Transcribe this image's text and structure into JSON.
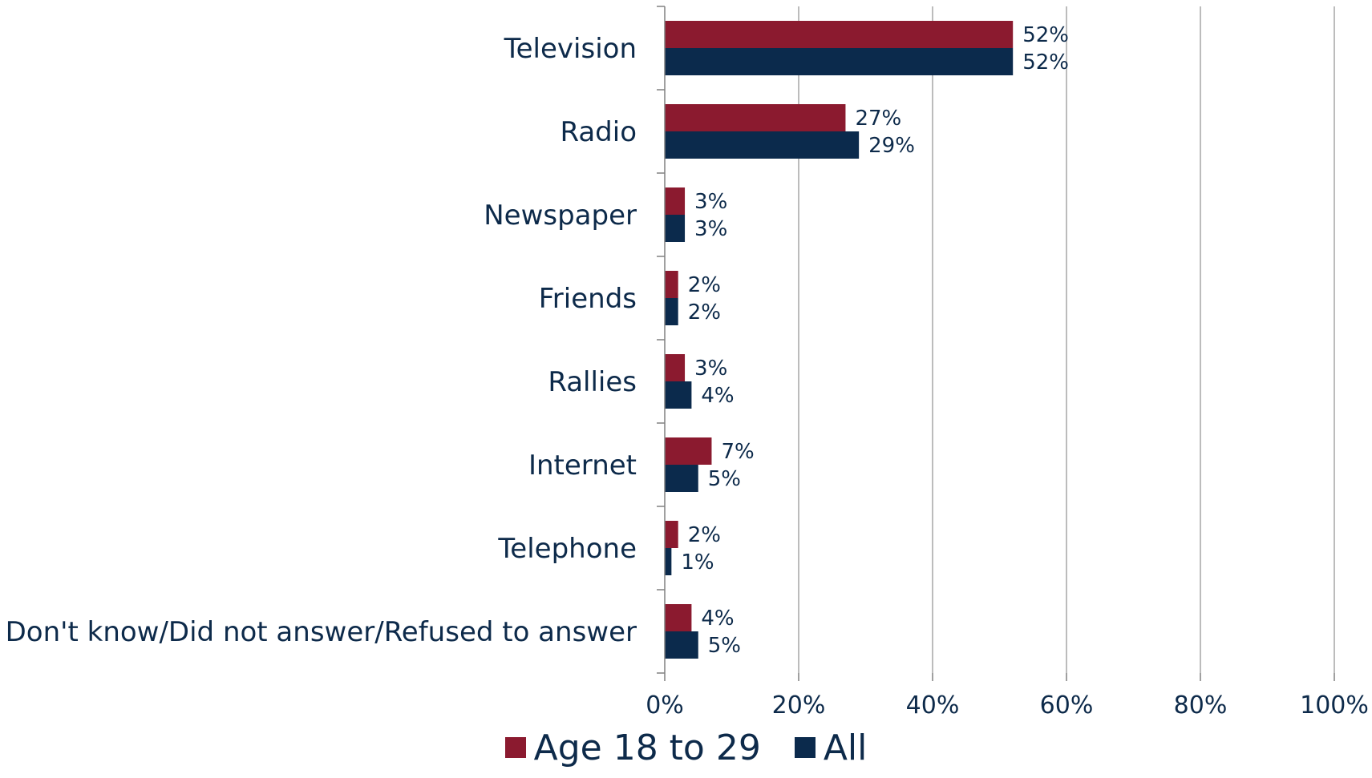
{
  "chart_data": {
    "type": "bar",
    "orientation": "horizontal",
    "categories": [
      "Television",
      "Radio",
      "Newspaper",
      "Friends",
      "Rallies",
      "Internet",
      "Telephone",
      "Don't know/Did not answer/Refused to answer"
    ],
    "series": [
      {
        "name": "Age 18 to 29",
        "color": "#8b1a2f",
        "values": [
          52,
          27,
          3,
          2,
          3,
          7,
          2,
          4
        ],
        "labels": [
          "52%",
          "27%",
          "3%",
          "2%",
          "3%",
          "7%",
          "2%",
          "4%"
        ]
      },
      {
        "name": "All",
        "color": "#0b2a4c",
        "values": [
          52,
          29,
          3,
          2,
          4,
          5,
          1,
          5
        ],
        "labels": [
          "52%",
          "29%",
          "3%",
          "2%",
          "4%",
          "5%",
          "1%",
          "5%"
        ]
      }
    ],
    "xlim": [
      0,
      100
    ],
    "xticks": [
      0,
      20,
      40,
      60,
      80,
      100
    ],
    "xtick_labels": [
      "0%",
      "20%",
      "40%",
      "60%",
      "80%",
      "100%"
    ],
    "grid": true,
    "legend_position": "bottom"
  }
}
